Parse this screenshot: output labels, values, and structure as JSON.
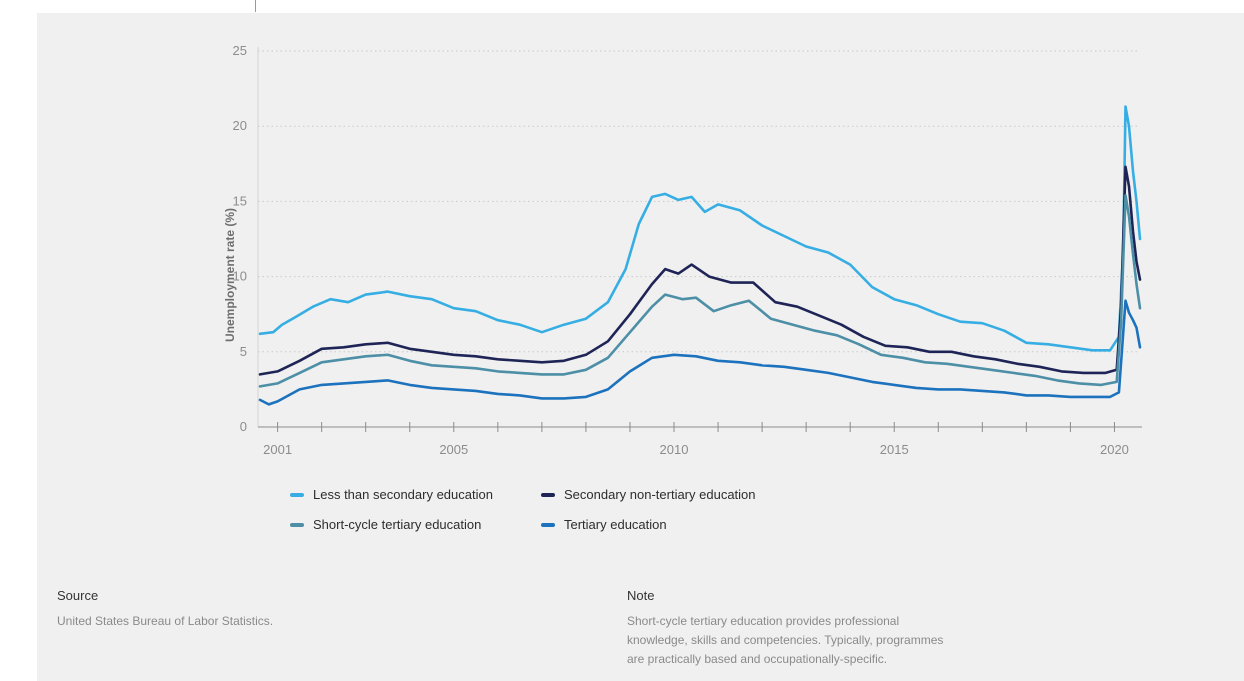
{
  "chart_data": {
    "type": "line",
    "ylabel": "Unemployment rate (%)",
    "xlabel": "",
    "ylim": [
      0,
      25
    ],
    "xlim": [
      2000.6,
      2020.58
    ],
    "yticks": [
      0,
      5,
      10,
      15,
      20,
      25
    ],
    "xticks": [
      2001,
      2005,
      2010,
      2015,
      2020
    ],
    "grid": "horizontal dotted",
    "legend_position": "bottom-left",
    "series": [
      {
        "name": "Less than secondary education",
        "color": "#37aee3",
        "points": [
          [
            2000.6,
            6.2
          ],
          [
            2000.9,
            6.3
          ],
          [
            2001.1,
            6.8
          ],
          [
            2001.4,
            7.3
          ],
          [
            2001.8,
            8.0
          ],
          [
            2002.2,
            8.5
          ],
          [
            2002.6,
            8.3
          ],
          [
            2003.0,
            8.8
          ],
          [
            2003.5,
            9.0
          ],
          [
            2004.0,
            8.7
          ],
          [
            2004.5,
            8.5
          ],
          [
            2005.0,
            7.9
          ],
          [
            2005.5,
            7.7
          ],
          [
            2006.0,
            7.1
          ],
          [
            2006.5,
            6.8
          ],
          [
            2007.0,
            6.3
          ],
          [
            2007.5,
            6.8
          ],
          [
            2008.0,
            7.2
          ],
          [
            2008.5,
            8.3
          ],
          [
            2008.9,
            10.5
          ],
          [
            2009.2,
            13.5
          ],
          [
            2009.5,
            15.3
          ],
          [
            2009.8,
            15.5
          ],
          [
            2010.1,
            15.1
          ],
          [
            2010.4,
            15.3
          ],
          [
            2010.7,
            14.3
          ],
          [
            2011.0,
            14.8
          ],
          [
            2011.5,
            14.4
          ],
          [
            2012.0,
            13.4
          ],
          [
            2012.5,
            12.7
          ],
          [
            2013.0,
            12.0
          ],
          [
            2013.5,
            11.6
          ],
          [
            2014.0,
            10.8
          ],
          [
            2014.5,
            9.3
          ],
          [
            2015.0,
            8.5
          ],
          [
            2015.5,
            8.1
          ],
          [
            2016.0,
            7.5
          ],
          [
            2016.5,
            7.0
          ],
          [
            2017.0,
            6.9
          ],
          [
            2017.5,
            6.4
          ],
          [
            2018.0,
            5.6
          ],
          [
            2018.5,
            5.5
          ],
          [
            2019.0,
            5.3
          ],
          [
            2019.5,
            5.1
          ],
          [
            2019.9,
            5.1
          ],
          [
            2020.1,
            6.0
          ],
          [
            2020.2,
            12.0
          ],
          [
            2020.25,
            21.3
          ],
          [
            2020.33,
            20.0
          ],
          [
            2020.42,
            17.0
          ],
          [
            2020.5,
            15.0
          ],
          [
            2020.58,
            12.5
          ]
        ]
      },
      {
        "name": "Secondary non-tertiary education",
        "color": "#1f2456",
        "points": [
          [
            2000.6,
            3.5
          ],
          [
            2001.0,
            3.7
          ],
          [
            2001.5,
            4.4
          ],
          [
            2002.0,
            5.2
          ],
          [
            2002.5,
            5.3
          ],
          [
            2003.0,
            5.5
          ],
          [
            2003.5,
            5.6
          ],
          [
            2004.0,
            5.2
          ],
          [
            2004.5,
            5.0
          ],
          [
            2005.0,
            4.8
          ],
          [
            2005.5,
            4.7
          ],
          [
            2006.0,
            4.5
          ],
          [
            2006.5,
            4.4
          ],
          [
            2007.0,
            4.3
          ],
          [
            2007.5,
            4.4
          ],
          [
            2008.0,
            4.8
          ],
          [
            2008.5,
            5.7
          ],
          [
            2009.0,
            7.5
          ],
          [
            2009.5,
            9.5
          ],
          [
            2009.8,
            10.5
          ],
          [
            2010.1,
            10.2
          ],
          [
            2010.4,
            10.8
          ],
          [
            2010.8,
            10.0
          ],
          [
            2011.3,
            9.6
          ],
          [
            2011.8,
            9.6
          ],
          [
            2012.3,
            8.3
          ],
          [
            2012.8,
            8.0
          ],
          [
            2013.3,
            7.4
          ],
          [
            2013.8,
            6.8
          ],
          [
            2014.3,
            6.0
          ],
          [
            2014.8,
            5.4
          ],
          [
            2015.3,
            5.3
          ],
          [
            2015.8,
            5.0
          ],
          [
            2016.3,
            5.0
          ],
          [
            2016.8,
            4.7
          ],
          [
            2017.3,
            4.5
          ],
          [
            2017.8,
            4.2
          ],
          [
            2018.3,
            4.0
          ],
          [
            2018.8,
            3.7
          ],
          [
            2019.3,
            3.6
          ],
          [
            2019.8,
            3.6
          ],
          [
            2020.05,
            3.8
          ],
          [
            2020.15,
            8.0
          ],
          [
            2020.25,
            17.3
          ],
          [
            2020.33,
            16.0
          ],
          [
            2020.42,
            13.0
          ],
          [
            2020.5,
            11.0
          ],
          [
            2020.58,
            9.8
          ]
        ]
      },
      {
        "name": "Short-cycle tertiary education",
        "color": "#4c8fa6",
        "points": [
          [
            2000.6,
            2.7
          ],
          [
            2001.0,
            2.9
          ],
          [
            2001.5,
            3.6
          ],
          [
            2002.0,
            4.3
          ],
          [
            2002.5,
            4.5
          ],
          [
            2003.0,
            4.7
          ],
          [
            2003.5,
            4.8
          ],
          [
            2004.0,
            4.4
          ],
          [
            2004.5,
            4.1
          ],
          [
            2005.0,
            4.0
          ],
          [
            2005.5,
            3.9
          ],
          [
            2006.0,
            3.7
          ],
          [
            2006.5,
            3.6
          ],
          [
            2007.0,
            3.5
          ],
          [
            2007.5,
            3.5
          ],
          [
            2008.0,
            3.8
          ],
          [
            2008.5,
            4.6
          ],
          [
            2009.0,
            6.3
          ],
          [
            2009.5,
            8.0
          ],
          [
            2009.8,
            8.8
          ],
          [
            2010.2,
            8.5
          ],
          [
            2010.5,
            8.6
          ],
          [
            2010.9,
            7.7
          ],
          [
            2011.3,
            8.1
          ],
          [
            2011.7,
            8.4
          ],
          [
            2012.2,
            7.2
          ],
          [
            2012.7,
            6.8
          ],
          [
            2013.2,
            6.4
          ],
          [
            2013.7,
            6.1
          ],
          [
            2014.2,
            5.5
          ],
          [
            2014.7,
            4.8
          ],
          [
            2015.2,
            4.6
          ],
          [
            2015.7,
            4.3
          ],
          [
            2016.2,
            4.2
          ],
          [
            2016.7,
            4.0
          ],
          [
            2017.2,
            3.8
          ],
          [
            2017.7,
            3.6
          ],
          [
            2018.2,
            3.4
          ],
          [
            2018.7,
            3.1
          ],
          [
            2019.2,
            2.9
          ],
          [
            2019.7,
            2.8
          ],
          [
            2020.05,
            3.0
          ],
          [
            2020.15,
            7.0
          ],
          [
            2020.25,
            15.4
          ],
          [
            2020.33,
            14.0
          ],
          [
            2020.42,
            11.5
          ],
          [
            2020.5,
            9.5
          ],
          [
            2020.58,
            7.9
          ]
        ]
      },
      {
        "name": "Tertiary education",
        "color": "#1c72bd",
        "points": [
          [
            2000.6,
            1.8
          ],
          [
            2000.8,
            1.5
          ],
          [
            2001.0,
            1.7
          ],
          [
            2001.5,
            2.5
          ],
          [
            2002.0,
            2.8
          ],
          [
            2002.5,
            2.9
          ],
          [
            2003.0,
            3.0
          ],
          [
            2003.5,
            3.1
          ],
          [
            2004.0,
            2.8
          ],
          [
            2004.5,
            2.6
          ],
          [
            2005.0,
            2.5
          ],
          [
            2005.5,
            2.4
          ],
          [
            2006.0,
            2.2
          ],
          [
            2006.5,
            2.1
          ],
          [
            2007.0,
            1.9
          ],
          [
            2007.5,
            1.9
          ],
          [
            2008.0,
            2.0
          ],
          [
            2008.5,
            2.5
          ],
          [
            2009.0,
            3.7
          ],
          [
            2009.5,
            4.6
          ],
          [
            2010.0,
            4.8
          ],
          [
            2010.5,
            4.7
          ],
          [
            2011.0,
            4.4
          ],
          [
            2011.5,
            4.3
          ],
          [
            2012.0,
            4.1
          ],
          [
            2012.5,
            4.0
          ],
          [
            2013.0,
            3.8
          ],
          [
            2013.5,
            3.6
          ],
          [
            2014.0,
            3.3
          ],
          [
            2014.5,
            3.0
          ],
          [
            2015.0,
            2.8
          ],
          [
            2015.5,
            2.6
          ],
          [
            2016.0,
            2.5
          ],
          [
            2016.5,
            2.5
          ],
          [
            2017.0,
            2.4
          ],
          [
            2017.5,
            2.3
          ],
          [
            2018.0,
            2.1
          ],
          [
            2018.5,
            2.1
          ],
          [
            2019.0,
            2.0
          ],
          [
            2019.5,
            2.0
          ],
          [
            2019.9,
            2.0
          ],
          [
            2020.1,
            2.3
          ],
          [
            2020.18,
            5.5
          ],
          [
            2020.25,
            8.4
          ],
          [
            2020.33,
            7.6
          ],
          [
            2020.42,
            7.1
          ],
          [
            2020.5,
            6.6
          ],
          [
            2020.58,
            5.3
          ]
        ]
      }
    ]
  },
  "footer": {
    "source_heading": "Source",
    "source_text": "United States Bureau of Labor Statistics.",
    "note_heading": "Note",
    "note_lines": [
      "Short-cycle tertiary education provides professional",
      "knowledge, skills and competencies. Typically, programmes",
      "are practically based and occupationally-specific."
    ]
  }
}
